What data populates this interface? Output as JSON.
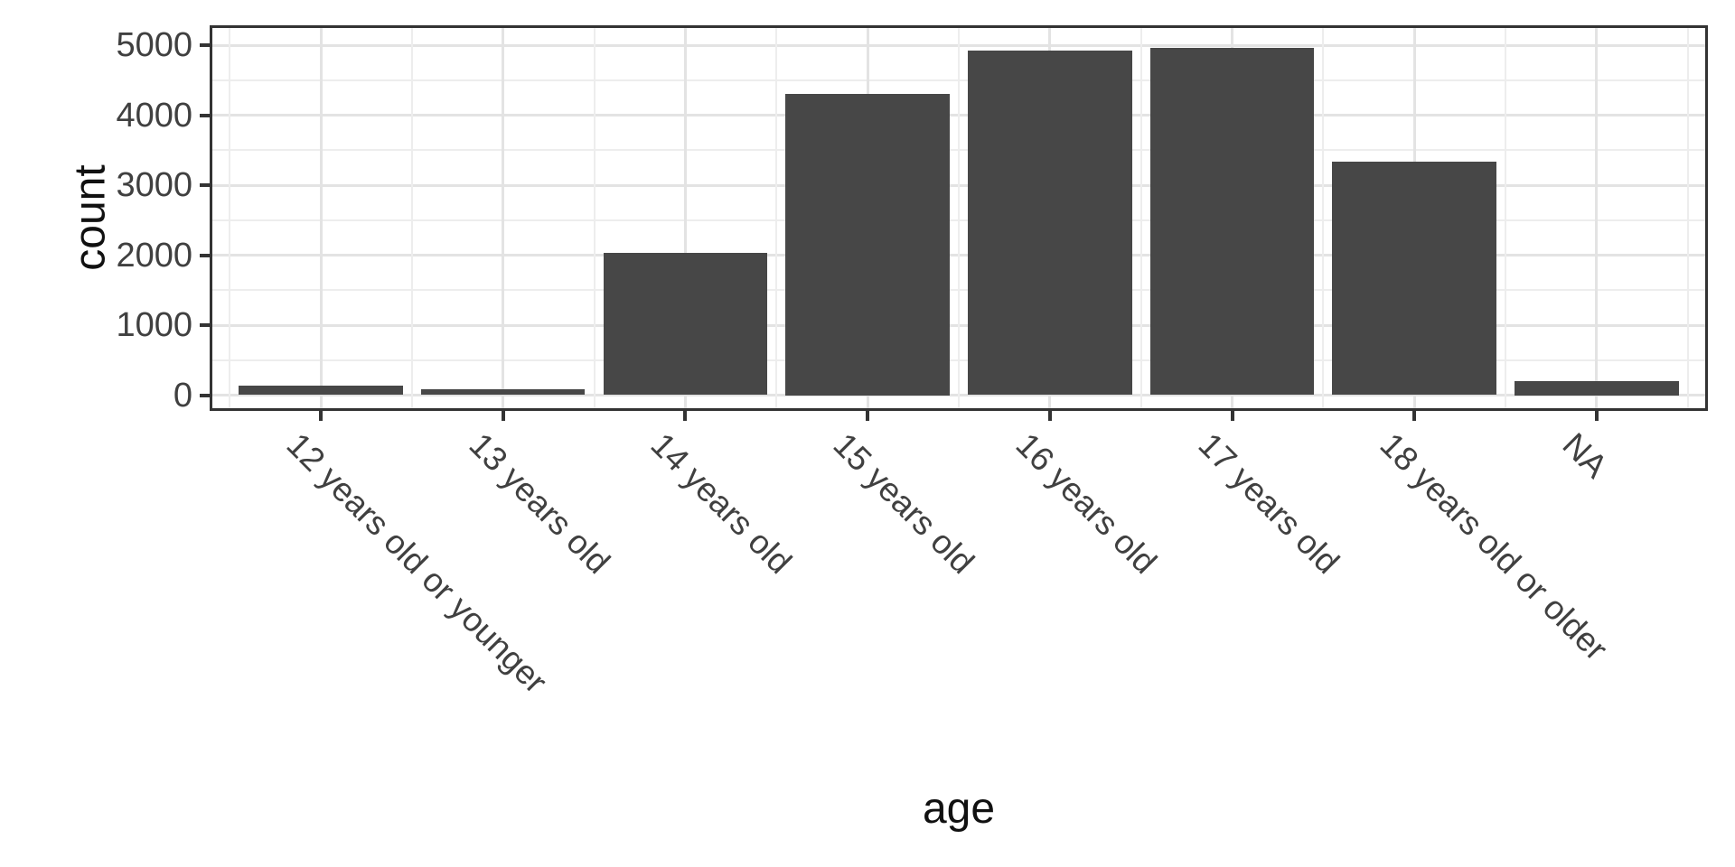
{
  "chart_data": {
    "type": "bar",
    "title": "",
    "xlabel": "age",
    "ylabel": "count",
    "categories": [
      "12 years old or younger",
      "13 years old",
      "14 years old",
      "15 years old",
      "16 years old",
      "17 years old",
      "18 years old or older",
      "NA"
    ],
    "values": [
      130,
      90,
      2030,
      4300,
      4920,
      4960,
      3330,
      200
    ],
    "ylim": [
      0,
      5000
    ],
    "yticks": [
      0,
      1000,
      2000,
      3000,
      4000,
      5000
    ],
    "ytick_labels": [
      "0",
      "1000",
      "2000",
      "3000",
      "4000",
      "5000"
    ],
    "minor_grid_step": 500,
    "grid": true,
    "legend_position": "none",
    "bar_orientation": "vertical",
    "colors": {
      "bar_fill": "#474747",
      "grid_major": "#e3e3e3",
      "grid_minor": "#ededed",
      "panel_border": "#333333",
      "axis_tick": "#333333",
      "tick_text": "#404040",
      "axis_title_text": "#111111",
      "background": "#ffffff"
    }
  }
}
